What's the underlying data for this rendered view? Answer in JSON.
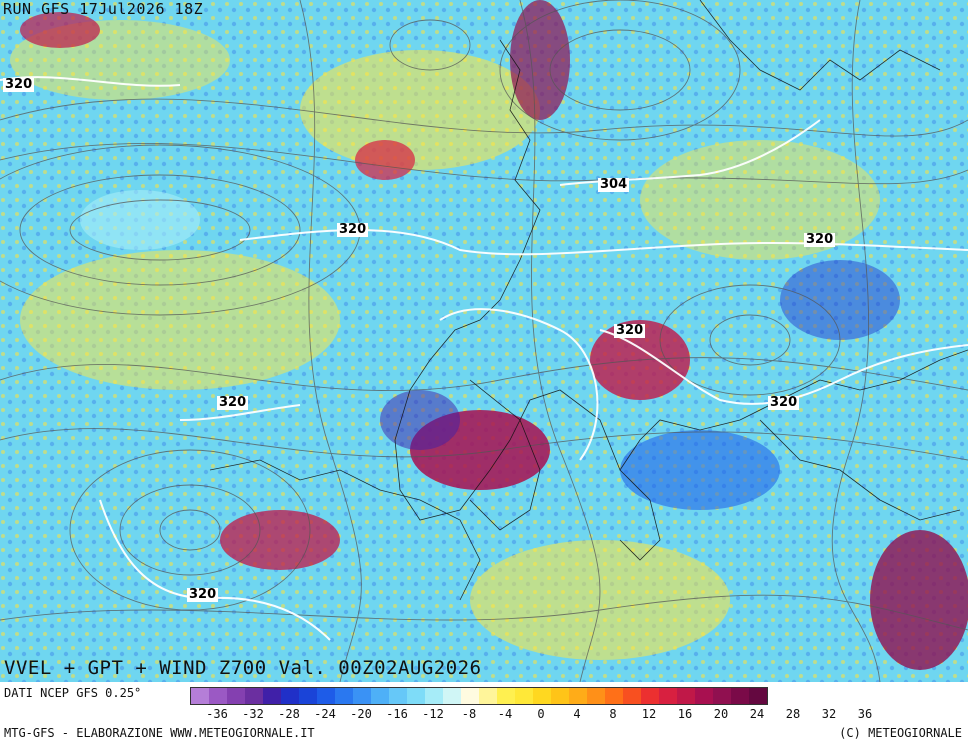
{
  "header": {
    "run_label": "RUN GFS 17Jul2026 18Z"
  },
  "map": {
    "title": "VVEL + GPT + WIND Z700 Val. 00Z02AUG2026",
    "contour_labels": [
      "320",
      "304",
      "320",
      "320",
      "320",
      "320",
      "320",
      "320"
    ]
  },
  "footer": {
    "source": "DATI NCEP GFS 0.25°",
    "credit_left": "MTG-GFS - ELABORAZIONE WWW.METEOGIORNALE.IT",
    "credit_right": "(C) METEOGIORNALE"
  },
  "colorbar": {
    "colors": [
      "#b57ed8",
      "#9b59c4",
      "#8440b0",
      "#6b2fa0",
      "#4020a8",
      "#2030c8",
      "#1a44d8",
      "#1e5ce8",
      "#2a78f0",
      "#3a92f5",
      "#4eb0f7",
      "#66c8f8",
      "#7edcf8",
      "#a6ecf8",
      "#d0f6f6",
      "#fffbe0",
      "#fff59a",
      "#fff050",
      "#ffe838",
      "#ffd820",
      "#ffc418",
      "#ffac18",
      "#ff9018",
      "#ff7018",
      "#f85020",
      "#ec3030",
      "#d82040",
      "#c01848",
      "#a81050",
      "#901050",
      "#7a0a48",
      "#640840"
    ],
    "tick_labels": [
      "-36",
      "-32",
      "-28",
      "-24",
      "-20",
      "-16",
      "-12",
      "-8",
      "-4",
      "0",
      "4",
      "8",
      "12",
      "16",
      "20",
      "24",
      "28",
      "32",
      "36"
    ]
  }
}
